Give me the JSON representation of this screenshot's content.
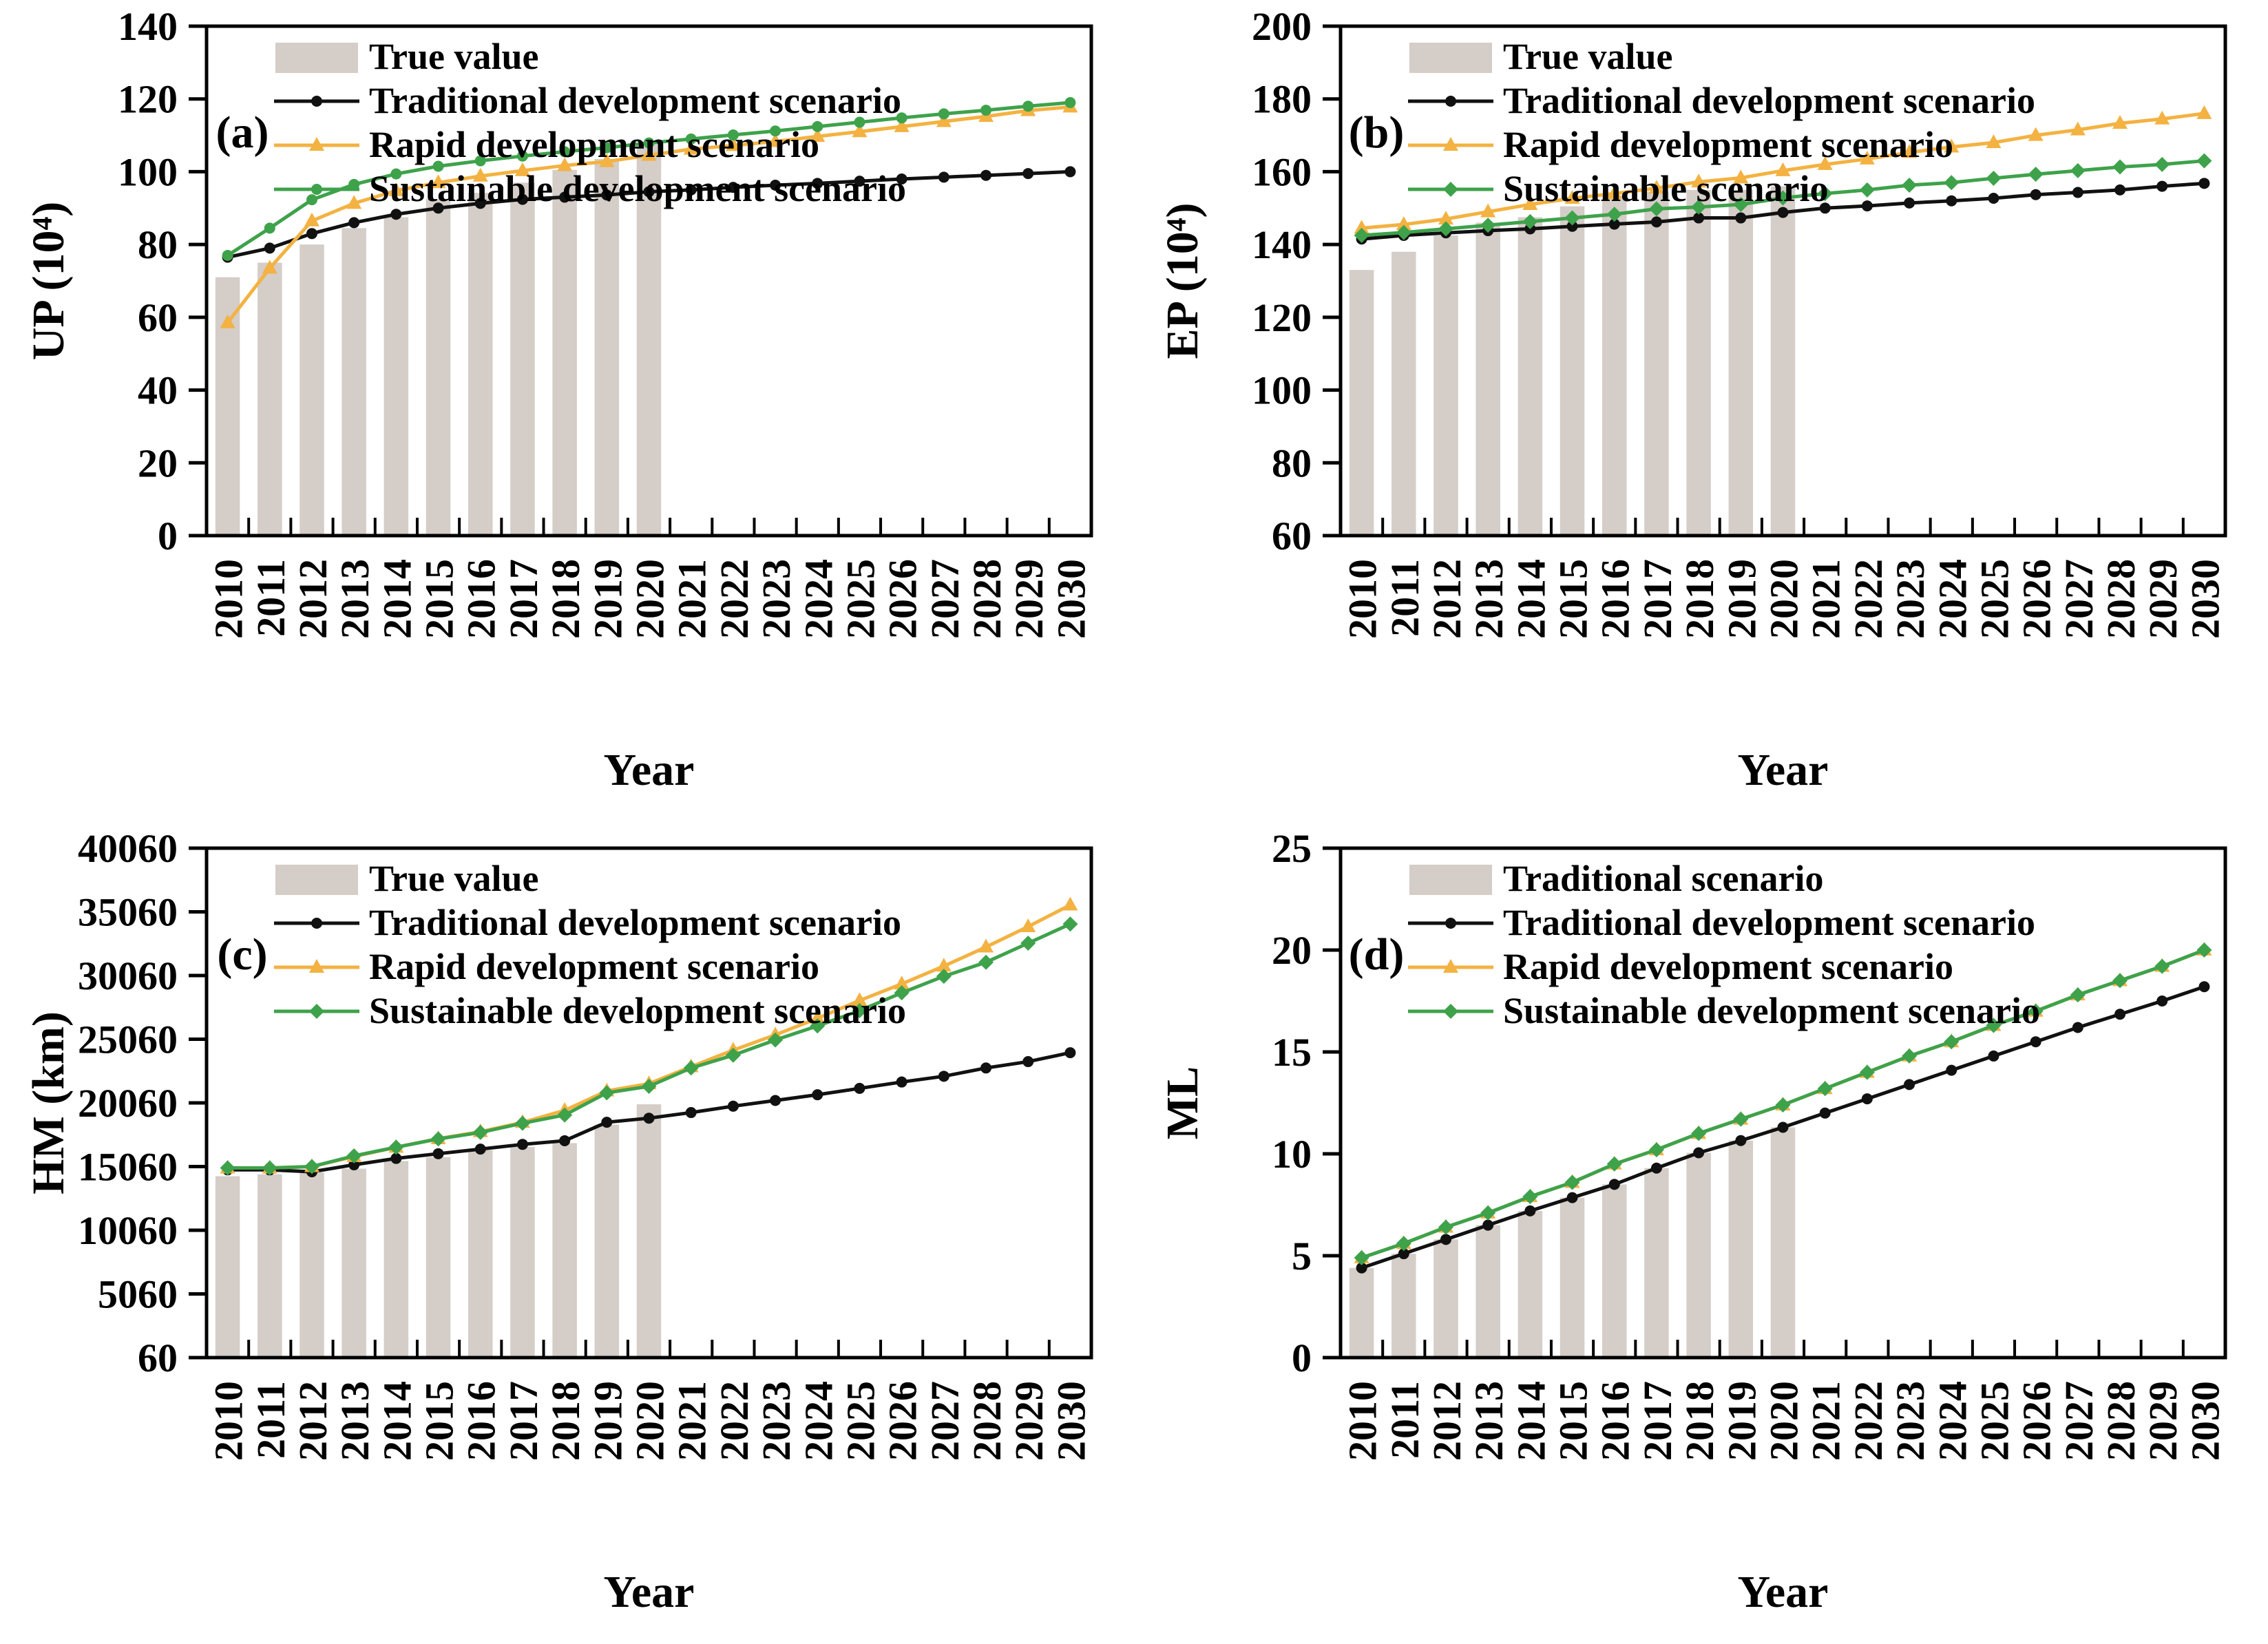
{
  "figure": {
    "background": "#ffffff",
    "xlabel": "Year",
    "years": [
      2010,
      2011,
      2012,
      2013,
      2014,
      2015,
      2016,
      2017,
      2018,
      2019,
      2020,
      2021,
      2022,
      2023,
      2024,
      2025,
      2026,
      2027,
      2028,
      2029,
      2030
    ],
    "colors": {
      "true_value_bar": "#d4cdc8",
      "traditional": "#111111",
      "rapid": "#f3b241",
      "sustainable": "#3ea24b",
      "axis": "#000000"
    }
  },
  "chart_data": [
    {
      "type": "bar",
      "panel_label": "(a)",
      "ylabel": "UP (10⁴)",
      "xlabel": "Year",
      "ylim": [
        0,
        140
      ],
      "ytick_step": 20,
      "grid": false,
      "legend_position": "top-left",
      "categories": [
        2010,
        2011,
        2012,
        2013,
        2014,
        2015,
        2016,
        2017,
        2018,
        2019,
        2020,
        2021,
        2022,
        2023,
        2024,
        2025,
        2026,
        2027,
        2028,
        2029,
        2030
      ],
      "series": [
        {
          "name": "True value",
          "kind": "bar",
          "color": "#d4cdc8",
          "marker": "none",
          "values": [
            71,
            75,
            80,
            84.5,
            87.5,
            92.5,
            94.2,
            97,
            100.5,
            103.5,
            108
          ]
        },
        {
          "name": "Traditional development scenario",
          "kind": "line",
          "color": "#111111",
          "marker": "circle",
          "values": [
            76.5,
            79,
            83,
            86,
            88.3,
            90,
            91.3,
            92.4,
            93,
            93.6,
            94.5,
            95,
            95.7,
            96.3,
            96.8,
            97.4,
            98,
            98.5,
            99,
            99.5,
            100
          ]
        },
        {
          "name": "Rapid development scenario",
          "kind": "line",
          "color": "#f3b241",
          "marker": "triangle",
          "values": [
            58.5,
            73.5,
            86.5,
            91.3,
            94.8,
            97,
            98.8,
            100.3,
            101.7,
            102.8,
            104.5,
            106.2,
            107.2,
            108.3,
            109.7,
            111,
            112.4,
            113.8,
            115.2,
            116.8,
            117.8
          ]
        },
        {
          "name": "Sustainable development scenario",
          "kind": "line",
          "color": "#3ea24b",
          "marker": "circle",
          "values": [
            77,
            84.5,
            92.3,
            96.5,
            99.4,
            101.5,
            103,
            104.3,
            105.5,
            106.6,
            107.9,
            109,
            110.1,
            111.2,
            112.4,
            113.6,
            114.8,
            115.9,
            116.9,
            118,
            119
          ]
        }
      ]
    },
    {
      "type": "bar",
      "panel_label": "(b)",
      "ylabel": "EP (10⁴)",
      "xlabel": "Year",
      "ylim": [
        60,
        200
      ],
      "ytick_step": 20,
      "grid": false,
      "legend_position": "top-left",
      "categories": [
        2010,
        2011,
        2012,
        2013,
        2014,
        2015,
        2016,
        2017,
        2018,
        2019,
        2020,
        2021,
        2022,
        2023,
        2024,
        2025,
        2026,
        2027,
        2028,
        2029,
        2030
      ],
      "series": [
        {
          "name": "True value",
          "kind": "bar",
          "color": "#d4cdc8",
          "marker": "none",
          "values": [
            133,
            138,
            142.5,
            146,
            147.5,
            150.5,
            153.5,
            154.5,
            155,
            155,
            156
          ]
        },
        {
          "name": "Traditional development scenario",
          "kind": "line",
          "color": "#111111",
          "marker": "circle",
          "values": [
            141.5,
            142.5,
            143.2,
            143.8,
            144.3,
            145,
            145.6,
            146.2,
            147.3,
            147.3,
            148.8,
            150,
            150.6,
            151.4,
            152,
            152.7,
            153.7,
            154.3,
            155,
            156,
            156.8
          ]
        },
        {
          "name": "Rapid development scenario",
          "kind": "line",
          "color": "#f3b241",
          "marker": "triangle",
          "values": [
            144.5,
            145.5,
            147,
            149,
            151,
            152.7,
            154,
            155.5,
            157.2,
            158.3,
            160.3,
            162,
            163.5,
            165.3,
            166.8,
            168,
            170,
            171.5,
            173.3,
            174.5,
            176
          ]
        },
        {
          "name": "Sustainable scenario",
          "kind": "line",
          "color": "#3ea24b",
          "marker": "diamond",
          "values": [
            142.5,
            143.3,
            144.3,
            145.3,
            146.3,
            147.3,
            148.3,
            149.8,
            150.3,
            151,
            152.8,
            154,
            155,
            156.3,
            157,
            158.2,
            159.3,
            160.3,
            161.3,
            162,
            163
          ]
        }
      ]
    },
    {
      "type": "bar",
      "panel_label": "(c)",
      "ylabel": "HM (km)",
      "xlabel": "Year",
      "ylim": [
        60,
        40060
      ],
      "ytick_step": 5000,
      "grid": false,
      "legend_position": "top-left",
      "categories": [
        2010,
        2011,
        2012,
        2013,
        2014,
        2015,
        2016,
        2017,
        2018,
        2019,
        2020,
        2021,
        2022,
        2023,
        2024,
        2025,
        2026,
        2027,
        2028,
        2029,
        2030
      ],
      "series": [
        {
          "name": "True value",
          "kind": "bar",
          "color": "#d4cdc8",
          "marker": "none",
          "values": [
            14300,
            14450,
            14600,
            14900,
            15500,
            15800,
            16350,
            16600,
            16900,
            18350,
            19950
          ]
        },
        {
          "name": "Traditional development scenario",
          "kind": "line",
          "color": "#111111",
          "marker": "circle",
          "values": [
            14800,
            14800,
            14650,
            15200,
            15700,
            16070,
            16430,
            16800,
            17090,
            18540,
            18860,
            19300,
            19800,
            20250,
            20700,
            21200,
            21700,
            22150,
            22800,
            23300,
            24000
          ]
        },
        {
          "name": "Rapid development scenario",
          "kind": "line",
          "color": "#f3b241",
          "marker": "triangle",
          "values": [
            14950,
            14950,
            15060,
            15850,
            16580,
            17250,
            17800,
            18530,
            19470,
            21000,
            21570,
            22900,
            24200,
            25400,
            26700,
            28100,
            29400,
            30800,
            32300,
            33900,
            35600
          ]
        },
        {
          "name": "Sustainable development scenario",
          "kind": "line",
          "color": "#3ea24b",
          "marker": "diamond",
          "values": [
            14950,
            14950,
            15060,
            15900,
            16580,
            17230,
            17740,
            18460,
            19110,
            20850,
            21360,
            22800,
            23800,
            25000,
            26100,
            27300,
            28700,
            30000,
            31100,
            32600,
            34100
          ]
        }
      ]
    },
    {
      "type": "bar",
      "panel_label": "(d)",
      "ylabel": "ML",
      "xlabel": "Year",
      "ylim": [
        0,
        25
      ],
      "ytick_step": 5,
      "grid": false,
      "legend_position": "top-left",
      "categories": [
        2010,
        2011,
        2012,
        2013,
        2014,
        2015,
        2016,
        2017,
        2018,
        2019,
        2020,
        2021,
        2022,
        2023,
        2024,
        2025,
        2026,
        2027,
        2028,
        2029,
        2030
      ],
      "series": [
        {
          "name": "Traditional scenario",
          "kind": "bar",
          "color": "#d4cdc8",
          "marker": "none",
          "values": [
            4.4,
            5.1,
            5.8,
            6.5,
            7.2,
            7.85,
            8.5,
            9.3,
            10.05,
            10.65,
            11.3
          ]
        },
        {
          "name": "Traditional development scenario",
          "kind": "line",
          "color": "#111111",
          "marker": "circle",
          "values": [
            4.4,
            5.1,
            5.8,
            6.5,
            7.2,
            7.85,
            8.5,
            9.3,
            10.05,
            10.65,
            11.3,
            12.0,
            12.7,
            13.4,
            14.1,
            14.8,
            15.5,
            16.2,
            16.85,
            17.5,
            18.2
          ]
        },
        {
          "name": "Rapid development scenario",
          "kind": "line",
          "color": "#f3b241",
          "marker": "triangle",
          "values": [
            4.9,
            5.6,
            6.4,
            7.1,
            7.9,
            8.6,
            9.5,
            10.2,
            11.0,
            11.7,
            12.4,
            13.2,
            14.0,
            14.8,
            15.5,
            16.3,
            17.0,
            17.8,
            18.5,
            19.2,
            20.0
          ]
        },
        {
          "name": "Sustainable development scenario",
          "kind": "line",
          "color": "#3ea24b",
          "marker": "diamond",
          "values": [
            4.9,
            5.6,
            6.4,
            7.1,
            7.9,
            8.6,
            9.5,
            10.2,
            11.0,
            11.7,
            12.4,
            13.2,
            14.0,
            14.8,
            15.5,
            16.3,
            17.0,
            17.8,
            18.5,
            19.2,
            20.0
          ]
        }
      ]
    }
  ]
}
